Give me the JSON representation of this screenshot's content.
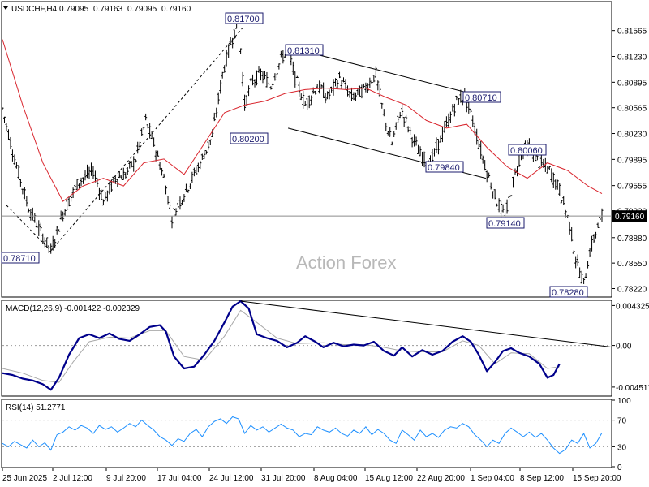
{
  "chart_data": [
    {
      "type": "candlestick",
      "title": "USDCHF,H4",
      "ohlc": [
        "0.79095",
        "0.79163",
        "0.79095",
        "0.79160"
      ],
      "watermark": "Action Forex",
      "current_price": "0.79160",
      "y_ticks": [
        "0.81565",
        "0.81230",
        "0.80895",
        "0.80565",
        "0.80230",
        "0.79895",
        "0.79555",
        "0.79230",
        "0.78880",
        "0.78550",
        "0.78220"
      ],
      "x_ticks": [
        "25 Jun 2025",
        "2 Jul 12:00",
        "9 Jul 20:00",
        "17 Jul 04:00",
        "24 Jul 12:00",
        "31 Jul 20:00",
        "8 Aug 04:00",
        "15 Aug 12:00",
        "22 Aug 20:00",
        "1 Sep 04:00",
        "8 Sep 12:00",
        "15 Sep 20:00"
      ],
      "ylim": [
        0.7812,
        0.8193
      ],
      "annotations": [
        {
          "label": "0.81700",
          "price": 0.817
        },
        {
          "label": "0.81310",
          "price": 0.8131
        },
        {
          "label": "0.80200",
          "price": 0.802
        },
        {
          "label": "0.80710",
          "price": 0.8071
        },
        {
          "label": "0.80060",
          "price": 0.8006
        },
        {
          "label": "0.79840",
          "price": 0.7984
        },
        {
          "label": "0.79140",
          "price": 0.7914
        },
        {
          "label": "0.78710",
          "price": 0.7871
        },
        {
          "label": "0.78280",
          "price": 0.7828
        }
      ],
      "price_path": [
        [
          0,
          0.8055
        ],
        [
          12,
          0.799
        ],
        [
          25,
          0.793
        ],
        [
          38,
          0.7895
        ],
        [
          48,
          0.7871
        ],
        [
          60,
          0.792
        ],
        [
          75,
          0.796
        ],
        [
          90,
          0.7975
        ],
        [
          100,
          0.7935
        ],
        [
          112,
          0.7965
        ],
        [
          122,
          0.797
        ],
        [
          132,
          0.799
        ],
        [
          142,
          0.804
        ],
        [
          150,
          0.801
        ],
        [
          160,
          0.7965
        ],
        [
          168,
          0.7915
        ],
        [
          176,
          0.7935
        ],
        [
          186,
          0.796
        ],
        [
          196,
          0.7985
        ],
        [
          208,
          0.802
        ],
        [
          218,
          0.81
        ],
        [
          226,
          0.814
        ],
        [
          234,
          0.817
        ],
        [
          240,
          0.806
        ],
        [
          247,
          0.809
        ],
        [
          256,
          0.81
        ],
        [
          266,
          0.8085
        ],
        [
          276,
          0.812
        ],
        [
          283,
          0.8131
        ],
        [
          290,
          0.8095
        ],
        [
          300,
          0.806
        ],
        [
          312,
          0.8085
        ],
        [
          322,
          0.807
        ],
        [
          334,
          0.8095
        ],
        [
          346,
          0.807
        ],
        [
          358,
          0.808
        ],
        [
          370,
          0.81
        ],
        [
          378,
          0.8045
        ],
        [
          386,
          0.801
        ],
        [
          395,
          0.8055
        ],
        [
          404,
          0.8025
        ],
        [
          414,
          0.7995
        ],
        [
          424,
          0.7984
        ],
        [
          432,
          0.801
        ],
        [
          442,
          0.804
        ],
        [
          450,
          0.8065
        ],
        [
          458,
          0.8071
        ],
        [
          466,
          0.804
        ],
        [
          474,
          0.8
        ],
        [
          482,
          0.7965
        ],
        [
          490,
          0.7935
        ],
        [
          498,
          0.7914
        ],
        [
          506,
          0.796
        ],
        [
          514,
          0.8
        ],
        [
          522,
          0.8006
        ],
        [
          532,
          0.7985
        ],
        [
          542,
          0.7975
        ],
        [
          552,
          0.795
        ],
        [
          562,
          0.7905
        ],
        [
          568,
          0.786
        ],
        [
          576,
          0.7828
        ],
        [
          582,
          0.787
        ],
        [
          588,
          0.7895
        ],
        [
          594,
          0.7916
        ]
      ],
      "ma_path": [
        [
          0,
          0.8145
        ],
        [
          20,
          0.806
        ],
        [
          40,
          0.7985
        ],
        [
          60,
          0.7935
        ],
        [
          80,
          0.7955
        ],
        [
          100,
          0.7965
        ],
        [
          120,
          0.7955
        ],
        [
          140,
          0.7985
        ],
        [
          160,
          0.799
        ],
        [
          180,
          0.797
        ],
        [
          200,
          0.801
        ],
        [
          220,
          0.805
        ],
        [
          240,
          0.806
        ],
        [
          260,
          0.8065
        ],
        [
          280,
          0.8075
        ],
        [
          300,
          0.808
        ],
        [
          320,
          0.8082
        ],
        [
          340,
          0.808
        ],
        [
          360,
          0.8082
        ],
        [
          380,
          0.807
        ],
        [
          400,
          0.806
        ],
        [
          420,
          0.804
        ],
        [
          440,
          0.803
        ],
        [
          460,
          0.8035
        ],
        [
          480,
          0.8005
        ],
        [
          500,
          0.798
        ],
        [
          520,
          0.7965
        ],
        [
          540,
          0.7985
        ],
        [
          560,
          0.7975
        ],
        [
          580,
          0.7955
        ],
        [
          594,
          0.7945
        ]
      ],
      "trendlines": [
        {
          "from": [
            4,
            0.793
          ],
          "to": [
            48,
            0.7871
          ],
          "style": "dashed"
        },
        {
          "from": [
            48,
            0.7871
          ],
          "to": [
            238,
            0.816
          ],
          "style": "dashed"
        },
        {
          "from": [
            283,
            0.8135
          ],
          "to": [
            479,
            0.807
          ],
          "style": "solid"
        },
        {
          "from": [
            283,
            0.803
          ],
          "to": [
            479,
            0.7965
          ],
          "style": "solid"
        }
      ],
      "colors": {
        "ma": "#d9262e",
        "candle": "#000000",
        "labels": "#1b1b6e",
        "price_line": "#8c8c8c"
      }
    },
    {
      "type": "line",
      "title": "MACD(12,26,9) -0.001422 -0.002329",
      "y_ticks": [
        "0.004325",
        "0.00",
        "-0.004511"
      ],
      "ylim": [
        -0.0054,
        0.0048
      ],
      "macd": [
        [
          0,
          -0.003
        ],
        [
          10,
          -0.0032
        ],
        [
          20,
          -0.0036
        ],
        [
          30,
          -0.0038
        ],
        [
          40,
          -0.0042
        ],
        [
          48,
          -0.0048
        ],
        [
          56,
          -0.0035
        ],
        [
          66,
          -0.001
        ],
        [
          76,
          0.0008
        ],
        [
          86,
          0.0012
        ],
        [
          96,
          0.0008
        ],
        [
          106,
          0.0013
        ],
        [
          116,
          0.0007
        ],
        [
          126,
          0.0005
        ],
        [
          136,
          0.0012
        ],
        [
          146,
          0.002
        ],
        [
          156,
          0.0022
        ],
        [
          162,
          0.0015
        ],
        [
          170,
          -0.0012
        ],
        [
          180,
          -0.0025
        ],
        [
          190,
          -0.0023
        ],
        [
          200,
          -0.001
        ],
        [
          210,
          0.0005
        ],
        [
          220,
          0.0025
        ],
        [
          228,
          0.0042
        ],
        [
          236,
          0.0048
        ],
        [
          244,
          0.004
        ],
        [
          252,
          0.0012
        ],
        [
          262,
          0.0008
        ],
        [
          272,
          0.0005
        ],
        [
          282,
          -0.0002
        ],
        [
          292,
          0.0003
        ],
        [
          300,
          0.001
        ],
        [
          310,
          0.0004
        ],
        [
          318,
          -0.0002
        ],
        [
          328,
          0.0003
        ],
        [
          338,
          -0.0001
        ],
        [
          348,
          0.0001
        ],
        [
          358,
          0.0
        ],
        [
          368,
          0.0004
        ],
        [
          378,
          -0.0006
        ],
        [
          388,
          -0.0011
        ],
        [
          396,
          -0.0002
        ],
        [
          406,
          -0.0012
        ],
        [
          416,
          -0.0005
        ],
        [
          426,
          -0.001
        ],
        [
          436,
          -0.0006
        ],
        [
          446,
          0.0004
        ],
        [
          456,
          0.001
        ],
        [
          464,
          0.0004
        ],
        [
          472,
          -0.001
        ],
        [
          480,
          -0.0028
        ],
        [
          488,
          -0.0018
        ],
        [
          496,
          -0.0006
        ],
        [
          504,
          -0.0003
        ],
        [
          512,
          -0.0008
        ],
        [
          522,
          -0.0012
        ],
        [
          532,
          -0.002
        ],
        [
          540,
          -0.0035
        ],
        [
          546,
          -0.0032
        ],
        [
          552,
          -0.002
        ]
      ],
      "signal": [
        [
          0,
          -0.0025
        ],
        [
          20,
          -0.003
        ],
        [
          40,
          -0.0038
        ],
        [
          56,
          -0.004
        ],
        [
          70,
          -0.0018
        ],
        [
          86,
          0.0004
        ],
        [
          106,
          0.0009
        ],
        [
          126,
          0.0008
        ],
        [
          146,
          0.0016
        ],
        [
          162,
          0.0016
        ],
        [
          180,
          -0.0012
        ],
        [
          200,
          -0.0016
        ],
        [
          220,
          0.001
        ],
        [
          236,
          0.0038
        ],
        [
          252,
          0.0025
        ],
        [
          272,
          0.0008
        ],
        [
          292,
          0.0002
        ],
        [
          318,
          0.0003
        ],
        [
          338,
          0.0001
        ],
        [
          358,
          0.0001
        ],
        [
          378,
          -0.0002
        ],
        [
          396,
          -0.0006
        ],
        [
          416,
          -0.0007
        ],
        [
          436,
          -0.0007
        ],
        [
          456,
          0.0005
        ],
        [
          472,
          0.0
        ],
        [
          488,
          -0.002
        ],
        [
          504,
          -0.0008
        ],
        [
          522,
          -0.0009
        ],
        [
          540,
          -0.0025
        ],
        [
          552,
          -0.0023
        ]
      ],
      "trendline": {
        "from": [
          236,
          0.0048
        ],
        "to": [
          594,
          0.0
        ]
      },
      "colors": {
        "macd": "#00008b",
        "signal": "#a9a9a9"
      }
    },
    {
      "type": "line",
      "title": "RSI(14) 51.2771",
      "y_ticks": [
        "100",
        "70",
        "30",
        "0"
      ],
      "ylim": [
        0,
        100
      ],
      "levels": [
        70,
        30
      ],
      "values": [
        [
          0,
          35
        ],
        [
          6,
          30
        ],
        [
          12,
          38
        ],
        [
          18,
          33
        ],
        [
          24,
          28
        ],
        [
          30,
          40
        ],
        [
          36,
          30
        ],
        [
          42,
          36
        ],
        [
          48,
          25
        ],
        [
          54,
          48
        ],
        [
          60,
          52
        ],
        [
          66,
          60
        ],
        [
          72,
          55
        ],
        [
          78,
          62
        ],
        [
          84,
          58
        ],
        [
          90,
          50
        ],
        [
          96,
          62
        ],
        [
          102,
          56
        ],
        [
          108,
          60
        ],
        [
          114,
          52
        ],
        [
          120,
          58
        ],
        [
          126,
          65
        ],
        [
          132,
          60
        ],
        [
          138,
          70
        ],
        [
          144,
          62
        ],
        [
          150,
          55
        ],
        [
          156,
          45
        ],
        [
          162,
          40
        ],
        [
          168,
          32
        ],
        [
          174,
          42
        ],
        [
          180,
          38
        ],
        [
          186,
          50
        ],
        [
          192,
          56
        ],
        [
          198,
          45
        ],
        [
          204,
          60
        ],
        [
          210,
          68
        ],
        [
          216,
          72
        ],
        [
          222,
          65
        ],
        [
          228,
          75
        ],
        [
          234,
          72
        ],
        [
          240,
          50
        ],
        [
          246,
          62
        ],
        [
          252,
          55
        ],
        [
          258,
          60
        ],
        [
          264,
          52
        ],
        [
          270,
          58
        ],
        [
          276,
          64
        ],
        [
          282,
          58
        ],
        [
          288,
          55
        ],
        [
          294,
          45
        ],
        [
          300,
          50
        ],
        [
          306,
          48
        ],
        [
          312,
          60
        ],
        [
          318,
          55
        ],
        [
          324,
          52
        ],
        [
          330,
          58
        ],
        [
          336,
          50
        ],
        [
          342,
          46
        ],
        [
          348,
          55
        ],
        [
          354,
          50
        ],
        [
          360,
          60
        ],
        [
          366,
          48
        ],
        [
          372,
          56
        ],
        [
          378,
          50
        ],
        [
          384,
          40
        ],
        [
          390,
          35
        ],
        [
          396,
          55
        ],
        [
          402,
          48
        ],
        [
          408,
          40
        ],
        [
          414,
          55
        ],
        [
          420,
          45
        ],
        [
          426,
          50
        ],
        [
          432,
          44
        ],
        [
          438,
          55
        ],
        [
          444,
          60
        ],
        [
          450,
          58
        ],
        [
          456,
          65
        ],
        [
          462,
          60
        ],
        [
          468,
          48
        ],
        [
          474,
          40
        ],
        [
          480,
          30
        ],
        [
          486,
          40
        ],
        [
          492,
          35
        ],
        [
          498,
          50
        ],
        [
          504,
          58
        ],
        [
          510,
          52
        ],
        [
          516,
          45
        ],
        [
          522,
          52
        ],
        [
          528,
          44
        ],
        [
          534,
          50
        ],
        [
          540,
          40
        ],
        [
          546,
          28
        ],
        [
          552,
          20
        ],
        [
          558,
          26
        ],
        [
          564,
          40
        ],
        [
          570,
          35
        ],
        [
          576,
          50
        ],
        [
          582,
          28
        ],
        [
          588,
          35
        ],
        [
          594,
          51
        ]
      ],
      "colors": {
        "rsi": "#1e90ff"
      }
    }
  ]
}
